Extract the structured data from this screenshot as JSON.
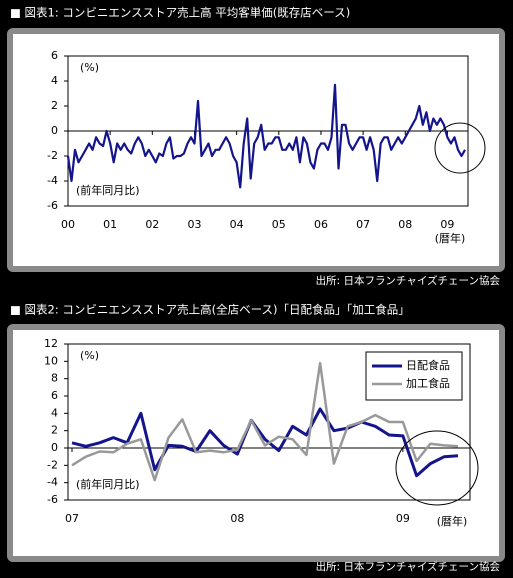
{
  "chart_data": [
    {
      "type": "line",
      "title": "■ 図表1: コンビニエンスストア売上高 平均客単価(既存店ベース)",
      "y_unit": "(%)",
      "annotation": "(前年同月比)",
      "x_unit": "(暦年)",
      "source": "出所: 日本フランチャイズチェーン協会",
      "categories": [
        "00",
        null,
        null,
        null,
        null,
        null,
        null,
        null,
        null,
        null,
        null,
        null,
        "01",
        null,
        null,
        null,
        null,
        null,
        null,
        null,
        null,
        null,
        null,
        null,
        "02",
        null,
        null,
        null,
        null,
        null,
        null,
        null,
        null,
        null,
        null,
        null,
        "03",
        null,
        null,
        null,
        null,
        null,
        null,
        null,
        null,
        null,
        null,
        null,
        "04",
        null,
        null,
        null,
        null,
        null,
        null,
        null,
        null,
        null,
        null,
        null,
        "05",
        null,
        null,
        null,
        null,
        null,
        null,
        null,
        null,
        null,
        null,
        null,
        "06",
        null,
        null,
        null,
        null,
        null,
        null,
        null,
        null,
        null,
        null,
        null,
        "07",
        null,
        null,
        null,
        null,
        null,
        null,
        null,
        null,
        null,
        null,
        null,
        "08",
        null,
        null,
        null,
        null,
        null,
        null,
        null,
        null,
        null,
        null,
        null,
        "09",
        null,
        null,
        null,
        null,
        null
      ],
      "values": [
        -2,
        -4,
        -1.5,
        -2.5,
        -2,
        -1.5,
        -1,
        -1.5,
        -0.5,
        -1,
        -1.2,
        0,
        -1,
        -2.5,
        -1,
        -1.5,
        -1,
        -1.5,
        -1.8,
        -1,
        -0.5,
        -1,
        -2,
        -1.5,
        -2,
        -2.5,
        -1.8,
        -2,
        -1,
        -0.5,
        -2.2,
        -2,
        -2,
        -1.8,
        -1,
        -0.5,
        -1,
        2.4,
        -2,
        -1.5,
        -1,
        -2,
        -1.5,
        -1.5,
        -1,
        -0.5,
        -1,
        -2,
        -2.5,
        -4.5,
        -1,
        1,
        -3.8,
        -1,
        -0.5,
        0.5,
        -1.5,
        -1,
        -1,
        -0.5,
        -0.5,
        -1.5,
        -1.5,
        -1,
        -1.5,
        -0.5,
        -2.5,
        -0.5,
        -1,
        -2.5,
        -3,
        -1.5,
        -1,
        -1,
        -1.5,
        -0.5,
        3.7,
        -3,
        0.5,
        0.5,
        -1,
        -1.5,
        -1,
        -0.5,
        -0.5,
        -1.5,
        -0.5,
        -1.5,
        -4,
        -1,
        -0.5,
        -0.5,
        -1.5,
        -1,
        -0.5,
        -1,
        -0.5,
        0,
        0.5,
        1,
        2,
        0.5,
        1.5,
        0,
        1,
        0.5,
        1,
        0.5,
        -0.5,
        -1,
        -0.5,
        -1.5,
        -2,
        -1.5
      ],
      "color": "#14148c",
      "ylim": [
        -6,
        6
      ],
      "yticks": [
        -6,
        -4,
        -2,
        0,
        2,
        4,
        6
      ],
      "grid": false
    },
    {
      "type": "line",
      "title": "■ 図表2: コンビニエンスストア売上高(全店ベース)「日配食品」「加工食品」",
      "y_unit": "(%)",
      "annotation": "(前年同月比)",
      "x_unit": "(暦年)",
      "source": "出所: 日本フランチャイズチェーン協会",
      "categories": [
        "07",
        null,
        null,
        null,
        null,
        null,
        null,
        null,
        null,
        null,
        null,
        null,
        "08",
        null,
        null,
        null,
        null,
        null,
        null,
        null,
        null,
        null,
        null,
        null,
        "09",
        null,
        null,
        null,
        null
      ],
      "series": [
        {
          "name": "日配食品",
          "color": "#14148c",
          "values": [
            0.6,
            0.2,
            0.6,
            1.2,
            0.6,
            4,
            -2.5,
            0.3,
            0.2,
            -0.4,
            2,
            0.3,
            -0.7,
            3.2,
            1,
            -0.3,
            2.5,
            1.5,
            4.5,
            2,
            2.3,
            3,
            2.5,
            1.5,
            1.4,
            -3.2,
            -1.8,
            -1,
            -0.9
          ]
        },
        {
          "name": "加工食品",
          "color": "#999999",
          "values": [
            -2,
            -1,
            -0.4,
            -0.5,
            0.5,
            1,
            -3.7,
            1.2,
            3.3,
            -0.5,
            -0.3,
            -0.5,
            -0.2,
            3.2,
            0.3,
            1.3,
            1,
            -0.8,
            9.8,
            -1.8,
            2.5,
            3,
            3.8,
            3,
            3,
            -1.5,
            0.5,
            0.3,
            0.2
          ]
        }
      ],
      "ylim": [
        -6,
        12
      ],
      "yticks": [
        -6,
        -4,
        -2,
        0,
        2,
        4,
        6,
        8,
        10,
        12
      ],
      "grid": false,
      "legend": "upper right"
    }
  ]
}
